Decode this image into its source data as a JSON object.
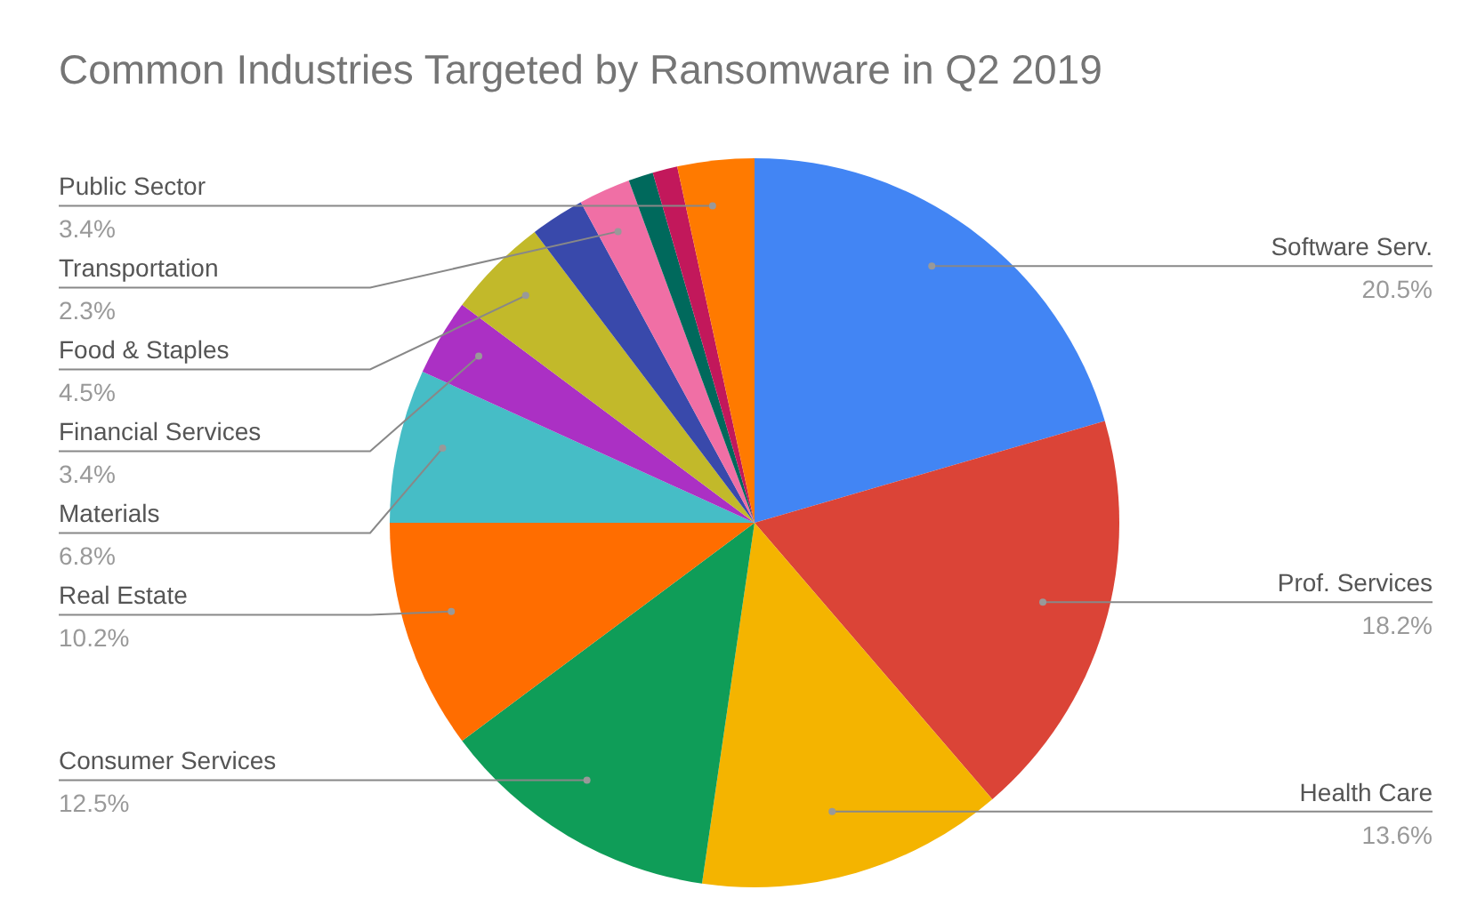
{
  "chart_data": {
    "type": "pie",
    "title": "Common Industries Targeted by Ransomware in Q2 2019",
    "categories": [
      "Software Serv.",
      "Prof. Services",
      "Health Care",
      "Consumer Services",
      "Real Estate",
      "Materials",
      "Financial Services",
      "Food & Staples",
      null,
      "Transportation",
      null,
      null,
      "Public Sector"
    ],
    "values": [
      20.5,
      18.2,
      13.6,
      12.5,
      10.2,
      6.8,
      3.4,
      4.5,
      2.4,
      2.3,
      1.1,
      1.1,
      3.4
    ],
    "colors": [
      "#4285f4",
      "#db4437",
      "#f4b400",
      "#0f9d58",
      "#ff6d00",
      "#46bdc6",
      "#ab30c4",
      "#c2b92a",
      "#3949ab",
      "#f06fa5",
      "#00695c",
      "#c2185b",
      "#ff7a00"
    ],
    "data_labels": true,
    "value_labels": [
      "20.5%",
      "18.2%",
      "13.6%",
      "12.5%",
      "10.2%",
      "6.8%",
      "3.4%",
      "4.5%",
      null,
      "2.3%",
      null,
      null,
      "3.4%"
    ]
  }
}
